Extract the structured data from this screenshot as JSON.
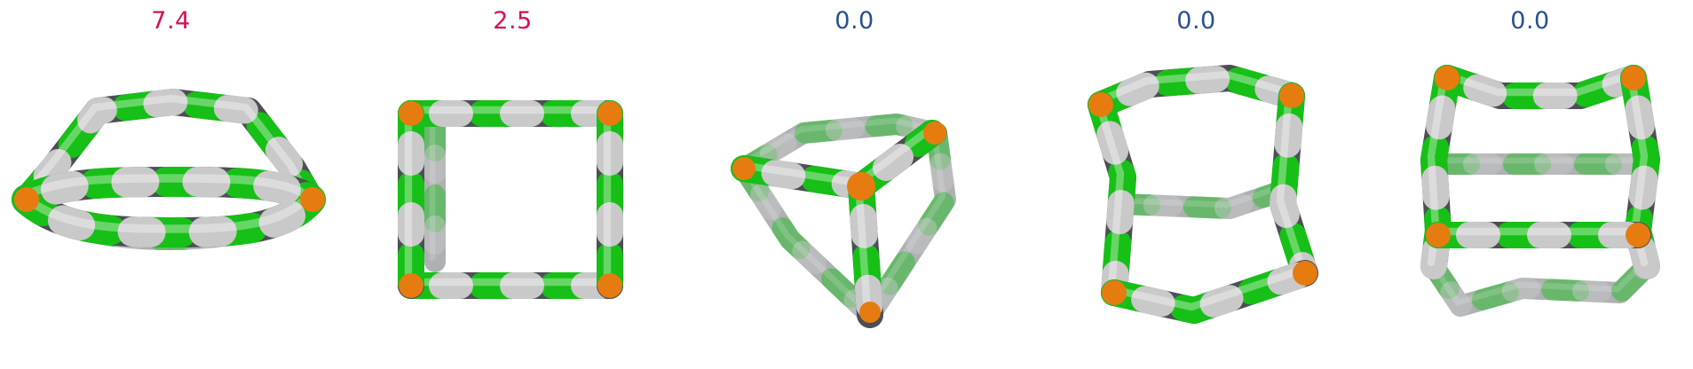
{
  "scores": [
    "7.4",
    "2.5",
    "0.0",
    "0.0",
    "0.0"
  ],
  "colors": {
    "score_high": "#d0115a",
    "score_zero": "#2a4f8f",
    "orange": "#e67c10",
    "green": "#16c016",
    "gray": "#4c4f55",
    "white": "#c9c9c9"
  }
}
